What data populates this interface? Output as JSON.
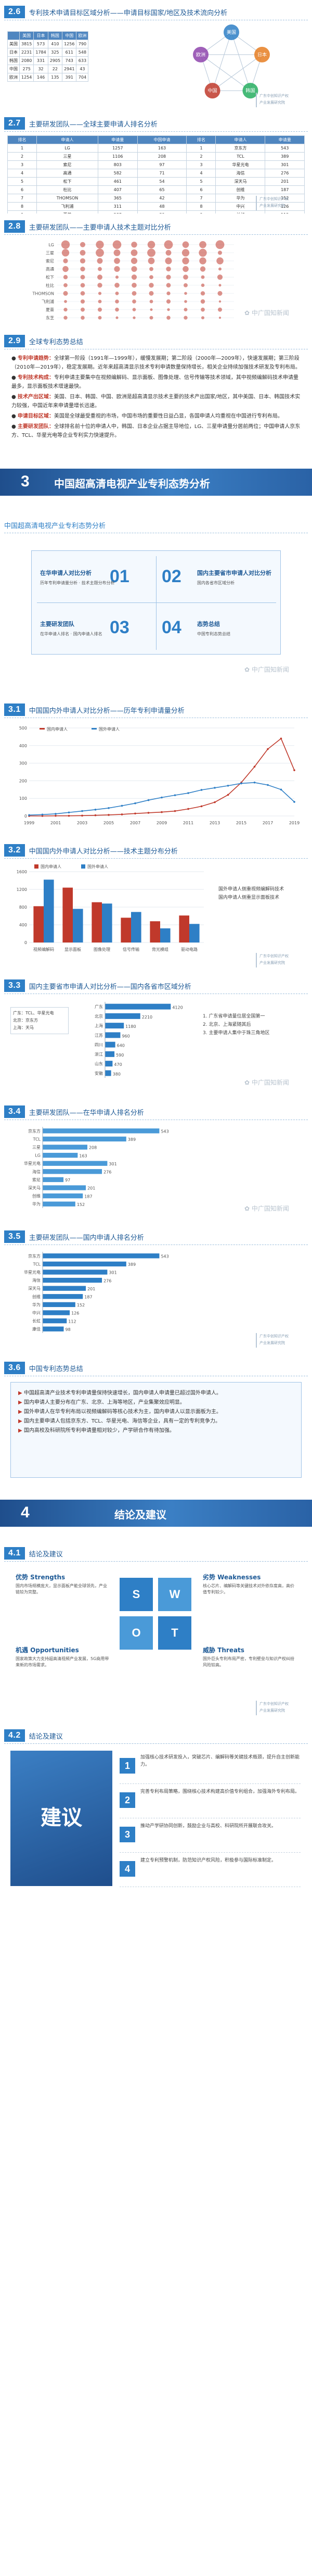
{
  "sections": {
    "s26": {
      "num": "2.6",
      "title": "专利技术申请目标区域分析——申请目标国家/地区及技术流向分析"
    },
    "s27": {
      "num": "2.7",
      "title": "主要研发团队——全球主要申请人排名分析"
    },
    "s28": {
      "num": "2.8",
      "title": "主要研发团队——主要申请人技术主题对比分析"
    },
    "s29": {
      "num": "2.9",
      "title": "全球专利态势总结"
    },
    "s31": {
      "num": "3.1",
      "title": "中国国内外申请人对比分析——历年专利申请量分析"
    },
    "s32": {
      "num": "3.2",
      "title": "中国国内外申请人对比分析——技术主题分布分析"
    },
    "s33": {
      "num": "3.3",
      "title": "国内主要省市申请人对比分析——国内各省市区域分析"
    },
    "s34": {
      "num": "3.4",
      "title": "主要研发团队——在华申请人排名分析"
    },
    "s35": {
      "num": "3.5",
      "title": "主要研发团队——国内申请人排名分析"
    },
    "s36": {
      "num": "3.6",
      "title": "中国专利态势总结"
    },
    "s41": {
      "num": "4.1",
      "title": "结论及建议"
    },
    "s42": {
      "num": "4.2",
      "title": "结论及建议"
    }
  },
  "stamp": {
    "line1": "广东中创知识产权",
    "line2": "产业发展研究院"
  },
  "watermark": "✿ 中广国知新闻",
  "chapters": {
    "ch3": {
      "num": "3",
      "title": "中国超高清电视产业专利态势分析"
    },
    "ch4": {
      "num": "4",
      "title": "结论及建议"
    }
  },
  "s26_table": {
    "headers": [
      "",
      "美国",
      "日本",
      "韩国",
      "中国",
      "欧洲"
    ],
    "rows": [
      [
        "美国",
        "3815",
        "573",
        "410",
        "1256",
        "790"
      ],
      [
        "日本",
        "2231",
        "1784",
        "325",
        "611",
        "548"
      ],
      [
        "韩国",
        "2080",
        "331",
        "2905",
        "743",
        "633"
      ],
      [
        "中国",
        "275",
        "32",
        "22",
        "2941",
        "43"
      ],
      [
        "欧洲",
        "1254",
        "146",
        "135",
        "391",
        "704"
      ]
    ]
  },
  "s26_network": {
    "nodes": [
      "美国",
      "日本",
      "韩国",
      "中国",
      "欧洲"
    ]
  },
  "s27_table": {
    "headers": [
      "排名",
      "申请人",
      "申请量",
      "中国申请",
      "排名",
      "申请人",
      "申请量"
    ],
    "rows": [
      [
        "1",
        "LG",
        "1257",
        "163",
        "1",
        "京东方",
        "543"
      ],
      [
        "2",
        "三星",
        "1106",
        "208",
        "2",
        "TCL",
        "389"
      ],
      [
        "3",
        "索尼",
        "803",
        "97",
        "3",
        "华星光电",
        "301"
      ],
      [
        "4",
        "高通",
        "582",
        "71",
        "4",
        "海信",
        "276"
      ],
      [
        "5",
        "松下",
        "461",
        "54",
        "5",
        "深天马",
        "201"
      ],
      [
        "6",
        "杜比",
        "407",
        "65",
        "6",
        "创维",
        "187"
      ],
      [
        "7",
        "THOMSON",
        "365",
        "42",
        "7",
        "华为",
        "152"
      ],
      [
        "8",
        "飞利浦",
        "311",
        "48",
        "8",
        "中兴",
        "126"
      ],
      [
        "9",
        "夏普",
        "287",
        "39",
        "9",
        "长虹",
        "112"
      ],
      [
        "10",
        "东芝",
        "254",
        "31",
        "10",
        "康佳",
        "98"
      ]
    ]
  },
  "s29": {
    "p1_head": "专利申请趋势：",
    "p1": "全球第一阶段（1991年—1999年），缓慢发展期；第二阶段（2000年—2009年），快速发展期；第三阶段（2010年—2019年），稳定发展期。近年来超高清显示技术专利申请数量保持增长，相关企业持续加强技术研发及专利布局。",
    "p2_head": "专利技术构成：",
    "p2": "专利申请主要集中在视频编解码、显示面板、图像处理、信号传输等技术领域，其中视频编解码技术申请量最多，显示面板技术增速最快。",
    "p3_head": "技术产出区域：",
    "p3": "美国、日本、韩国、中国、欧洲是超高清显示技术主要的技术产出国家/地区，其中美国、日本、韩国技术实力较强，中国近年来申请量增长迅速。",
    "p4_head": "申请目标区域：",
    "p4": "美国是全球最受重视的市场，中国市场的重要性日益凸显，各国申请人均重视在中国进行专利布局。",
    "p5_head": "主要研发团队：",
    "p5": "全球排名前十位的申请人中，韩国、日本企业占据主导地位，LG、三星申请量分居前两位；中国申请人京东方、TCL、华星光电等企业专利实力快速提升。"
  },
  "catalog": {
    "header": "中国超高清电视产业专利态势分析",
    "items": [
      {
        "num": "01",
        "title": "在华申请人对比分析",
        "sub": "历年专利申请量分析 · 技术主题分布分析"
      },
      {
        "num": "02",
        "title": "国内主要省市申请人对比分析",
        "sub": "国内各省市区域分析"
      },
      {
        "num": "03",
        "title": "主要研发团队",
        "sub": "在华申请人排名 · 国内申请人排名"
      },
      {
        "num": "04",
        "title": "态势总结",
        "sub": "中国专利态势总结"
      }
    ]
  },
  "chart_data": [
    {
      "type": "line",
      "title": "",
      "xlabel": "",
      "ylabel": "",
      "x": [
        "1999",
        "2000",
        "2001",
        "2002",
        "2003",
        "2004",
        "2005",
        "2006",
        "2007",
        "2008",
        "2009",
        "2010",
        "2011",
        "2012",
        "2013",
        "2014",
        "2015",
        "2016",
        "2017",
        "2018",
        "2019"
      ],
      "ylim": [
        0,
        500
      ],
      "series": [
        {
          "name": "国内申请人",
          "values": [
            0,
            0,
            1,
            1,
            2,
            4,
            6,
            9,
            14,
            18,
            22,
            28,
            40,
            55,
            78,
            120,
            190,
            280,
            380,
            440,
            260
          ]
        },
        {
          "name": "国外申请人",
          "values": [
            5,
            8,
            12,
            20,
            28,
            36,
            45,
            58,
            72,
            90,
            105,
            118,
            130,
            148,
            160,
            172,
            185,
            190,
            176,
            150,
            80
          ]
        }
      ]
    },
    {
      "type": "bar",
      "title": "",
      "xlabel": "",
      "ylabel": "",
      "categories": [
        "视频编解码",
        "显示面板",
        "图像处理",
        "信号传输",
        "背光模组",
        "驱动电路"
      ],
      "series": [
        {
          "name": "国内申请人",
          "values": [
            820,
            1240,
            910,
            560,
            480,
            610
          ]
        },
        {
          "name": "国外申请人",
          "values": [
            1420,
            760,
            880,
            690,
            320,
            420
          ]
        }
      ],
      "ylim": [
        0,
        1600
      ]
    },
    {
      "type": "bar",
      "title": "",
      "xlabel": "",
      "ylabel": "",
      "categories": [
        "广东",
        "北京",
        "上海",
        "江苏",
        "四川",
        "浙江",
        "山东",
        "安徽"
      ],
      "values": [
        4120,
        2210,
        1180,
        960,
        640,
        590,
        470,
        380
      ],
      "ylim": [
        0,
        4500
      ]
    },
    {
      "type": "bar",
      "title": "",
      "xlabel": "",
      "ylabel": "",
      "categories": [
        "京东方",
        "TCL",
        "三星",
        "LG",
        "华星光电",
        "海信",
        "索尼",
        "深天马",
        "创维",
        "华为"
      ],
      "values": [
        543,
        389,
        208,
        163,
        301,
        276,
        97,
        201,
        187,
        152
      ],
      "ylim": [
        0,
        600
      ]
    },
    {
      "type": "bar",
      "title": "",
      "xlabel": "",
      "ylabel": "",
      "categories": [
        "京东方",
        "TCL",
        "华星光电",
        "海信",
        "深天马",
        "创维",
        "华为",
        "中兴",
        "长虹",
        "康佳"
      ],
      "values": [
        543,
        389,
        301,
        276,
        201,
        187,
        152,
        126,
        112,
        98
      ],
      "ylim": [
        0,
        600
      ]
    }
  ],
  "s32_notes": {
    "n1": "国外申请人侧重视频编解码技术",
    "n2": "国内申请人侧重显示面板技术"
  },
  "s33_notes": [
    "1. 广东省申请量位居全国第一",
    "2. 北京、上海紧随其后",
    "3. 主要申请人集中于珠三角地区"
  ],
  "s33_side": [
    "广东：TCL、华星光电",
    "北京：京东方",
    "上海：天马"
  ],
  "s36_items": [
    "中国超高清产业技术专利申请量保持快速增长，国内申请人申请量已超过国外申请人。",
    "国内申请人主要分布在广东、北京、上海等地区，产业集聚效应明显。",
    "国外申请人在华专利布局以视频编解码等核心技术为主，国内申请人以显示面板为主。",
    "国内主要申请人包括京东方、TCL、华星光电、海信等企业，具有一定的专利竞争力。",
    "国内高校及科研院所专利申请量相对较少，产学研合作有待加强。"
  ],
  "swot": {
    "s_label": "优势 Strengths",
    "w_label": "劣势 Weaknesses",
    "o_label": "机遇 Opportunities",
    "t_label": "威胁 Threats",
    "s_text": "国内市场规模庞大，显示面板产能全球领先，产业链较为完整。",
    "w_text": "核心芯片、编解码等关键技术对外依存度高，高价值专利较少。",
    "o_text": "国家政策大力支持超高清视频产业发展，5G商用带来新的市场需求。",
    "t_text": "国外巨头专利布局严密，专利壁垒与知识产权纠纷风险较高。"
  },
  "suggest": {
    "big": "建议",
    "items": [
      {
        "num": "1",
        "text": "加强核心技术研发投入，突破芯片、编解码等关键技术瓶颈，提升自主创新能力。"
      },
      {
        "num": "2",
        "text": "完善专利布局策略，围绕核心技术构建高价值专利组合，加强海外专利布局。"
      },
      {
        "num": "3",
        "text": "推动产学研协同创新，鼓励企业与高校、科研院所开展联合攻关。"
      },
      {
        "num": "4",
        "text": "建立专利预警机制，防范知识产权风险，积极参与国际标准制定。"
      }
    ]
  }
}
